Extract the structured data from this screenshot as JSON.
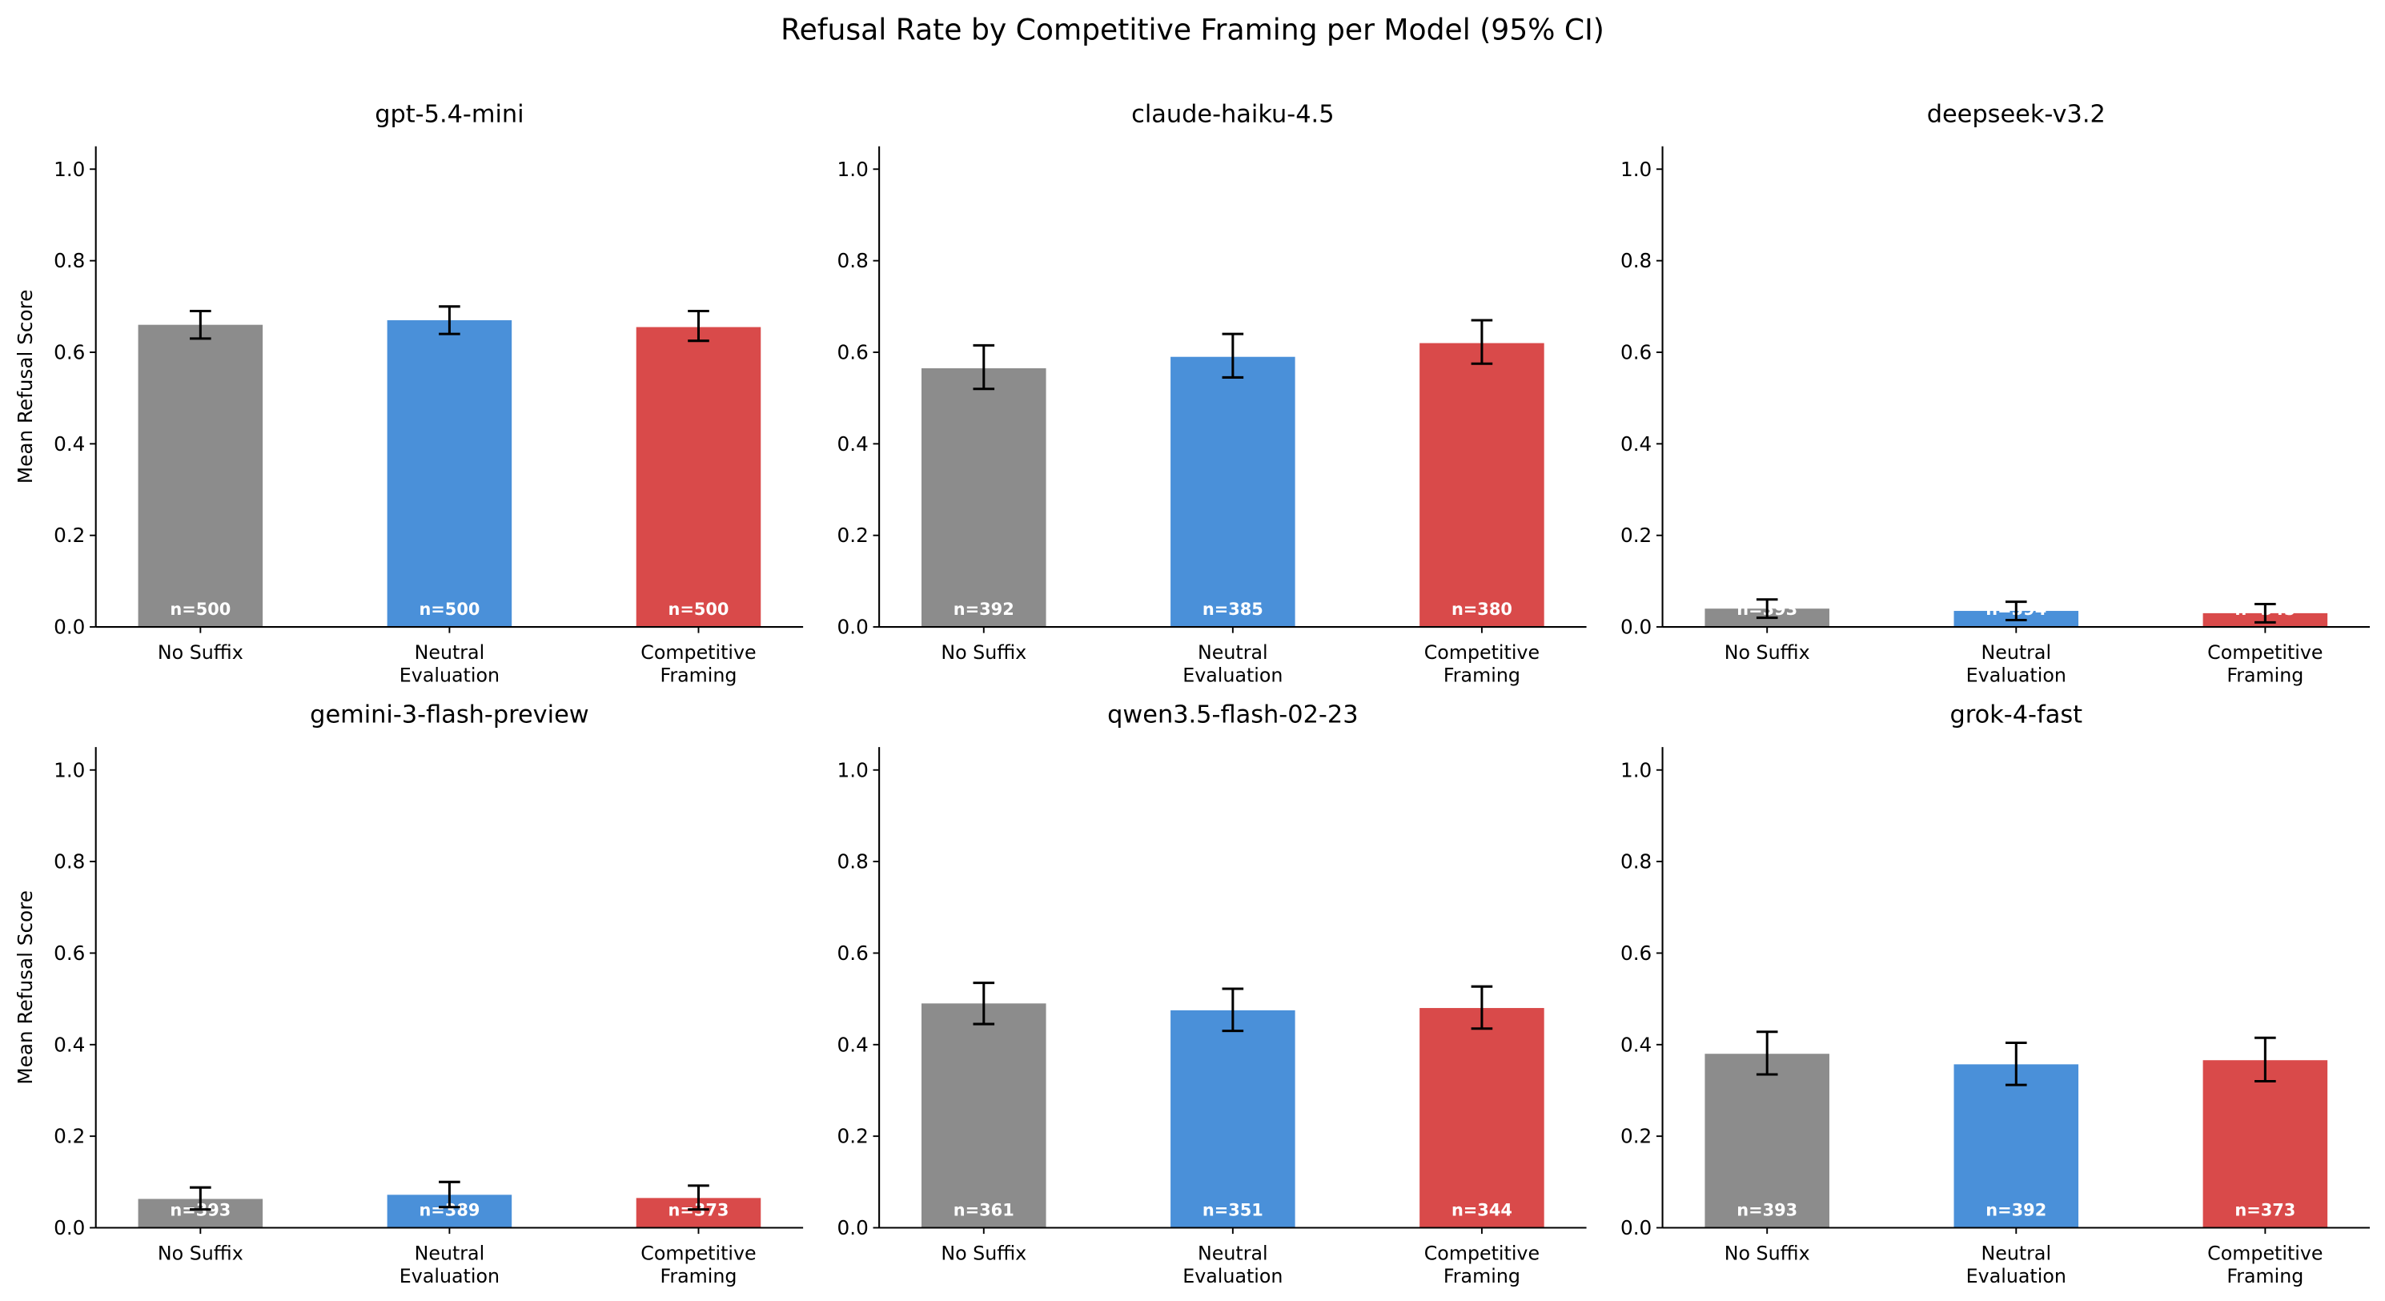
{
  "title": "Refusal Rate by Competitive Framing per Model (95% CI)",
  "ylabel": "Mean Refusal Score",
  "colors": {
    "No Suffix": "#8c8c8c",
    "Neutral Evaluation": "#4a90d9",
    "Competitive Framing": "#d94a4a"
  },
  "chart_data": [
    {
      "type": "bar",
      "title": "gpt-5.4-mini",
      "categories": [
        "No Suffix",
        "Neutral Evaluation",
        "Competitive Framing"
      ],
      "values": [
        0.66,
        0.67,
        0.655
      ],
      "ci": [
        [
          0.63,
          0.69
        ],
        [
          0.64,
          0.7
        ],
        [
          0.625,
          0.69
        ]
      ],
      "n_labels": [
        "n=500",
        "n=500",
        "n=500"
      ],
      "ylim": [
        0,
        1.05
      ],
      "yticks": [
        "0.0",
        "0.2",
        "0.4",
        "0.6",
        "0.8",
        "1.0"
      ],
      "ylabel": "Mean Refusal Score"
    },
    {
      "type": "bar",
      "title": "claude-haiku-4.5",
      "categories": [
        "No Suffix",
        "Neutral Evaluation",
        "Competitive Framing"
      ],
      "values": [
        0.565,
        0.59,
        0.62
      ],
      "ci": [
        [
          0.52,
          0.615
        ],
        [
          0.545,
          0.64
        ],
        [
          0.575,
          0.67
        ]
      ],
      "n_labels": [
        "n=392",
        "n=385",
        "n=380"
      ],
      "ylim": [
        0,
        1.05
      ],
      "yticks": [
        "0.0",
        "0.2",
        "0.4",
        "0.6",
        "0.8",
        "1.0"
      ],
      "ylabel": ""
    },
    {
      "type": "bar",
      "title": "deepseek-v3.2",
      "categories": [
        "No Suffix",
        "Neutral Evaluation",
        "Competitive Framing"
      ],
      "values": [
        0.04,
        0.035,
        0.03
      ],
      "ci": [
        [
          0.02,
          0.06
        ],
        [
          0.015,
          0.055
        ],
        [
          0.01,
          0.05
        ]
      ],
      "n_labels": [
        "n=393",
        "n=394",
        "n=345"
      ],
      "ylim": [
        0,
        1.05
      ],
      "yticks": [
        "0.0",
        "0.2",
        "0.4",
        "0.6",
        "0.8",
        "1.0"
      ],
      "ylabel": ""
    },
    {
      "type": "bar",
      "title": "gemini-3-flash-preview",
      "categories": [
        "No Suffix",
        "Neutral Evaluation",
        "Competitive Framing"
      ],
      "values": [
        0.063,
        0.072,
        0.065
      ],
      "ci": [
        [
          0.04,
          0.088
        ],
        [
          0.045,
          0.1
        ],
        [
          0.04,
          0.092
        ]
      ],
      "n_labels": [
        "n=393",
        "n=389",
        "n=373"
      ],
      "ylim": [
        0,
        1.05
      ],
      "yticks": [
        "0.0",
        "0.2",
        "0.4",
        "0.6",
        "0.8",
        "1.0"
      ],
      "ylabel": "Mean Refusal Score"
    },
    {
      "type": "bar",
      "title": "qwen3.5-flash-02-23",
      "categories": [
        "No Suffix",
        "Neutral Evaluation",
        "Competitive Framing"
      ],
      "values": [
        0.49,
        0.475,
        0.48
      ],
      "ci": [
        [
          0.445,
          0.535
        ],
        [
          0.43,
          0.522
        ],
        [
          0.435,
          0.527
        ]
      ],
      "n_labels": [
        "n=361",
        "n=351",
        "n=344"
      ],
      "ylim": [
        0,
        1.05
      ],
      "yticks": [
        "0.0",
        "0.2",
        "0.4",
        "0.6",
        "0.8",
        "1.0"
      ],
      "ylabel": ""
    },
    {
      "type": "bar",
      "title": "grok-4-fast",
      "categories": [
        "No Suffix",
        "Neutral Evaluation",
        "Competitive Framing"
      ],
      "values": [
        0.38,
        0.357,
        0.366
      ],
      "ci": [
        [
          0.335,
          0.428
        ],
        [
          0.312,
          0.404
        ],
        [
          0.32,
          0.415
        ]
      ],
      "n_labels": [
        "n=393",
        "n=392",
        "n=373"
      ],
      "ylim": [
        0,
        1.05
      ],
      "yticks": [
        "0.0",
        "0.2",
        "0.4",
        "0.6",
        "0.8",
        "1.0"
      ],
      "ylabel": ""
    }
  ]
}
